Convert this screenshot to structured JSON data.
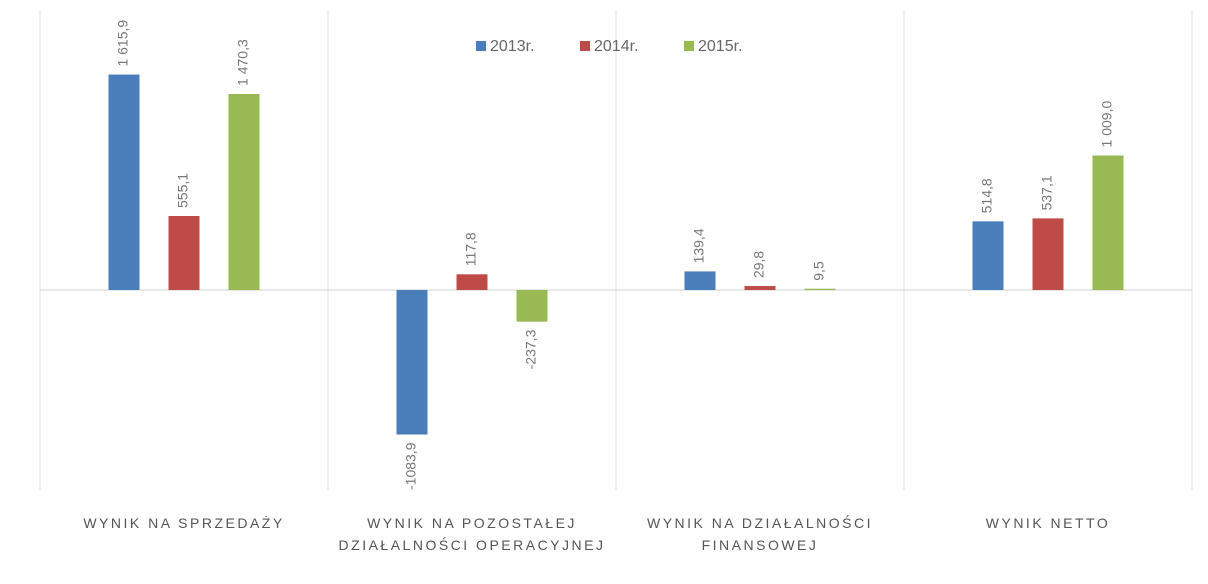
{
  "chart_data": {
    "type": "bar",
    "categories": [
      "WYNIK NA SPRZEDAŻY",
      "WYNIK NA POZOSTAŁEJ DZIAŁALNOŚCI OPERACYJNEJ",
      "WYNIK NA DZIAŁALNOŚCI FINANSOWEJ",
      "WYNIK NETTO"
    ],
    "series": [
      {
        "name": "2013r.",
        "color": "#4a7ebb",
        "values": [
          1615.9,
          -1083.9,
          139.4,
          514.8
        ],
        "value_labels": [
          "1 615,9",
          "-1083,9",
          "139,4",
          "514,8"
        ]
      },
      {
        "name": "2014r.",
        "color": "#be4b48",
        "values": [
          555.1,
          117.8,
          29.8,
          537.1
        ],
        "value_labels": [
          "555,1",
          "117,8",
          "29,8",
          "537,1"
        ]
      },
      {
        "name": "2015r.",
        "color": "#98b954",
        "values": [
          1470.3,
          -237.3,
          9.5,
          1009.0
        ],
        "value_labels": [
          "1 470,3",
          "-237,3",
          "9,5",
          "1 009,0"
        ]
      }
    ],
    "ylim": [
      -1500,
      2100
    ],
    "legend": "top"
  }
}
